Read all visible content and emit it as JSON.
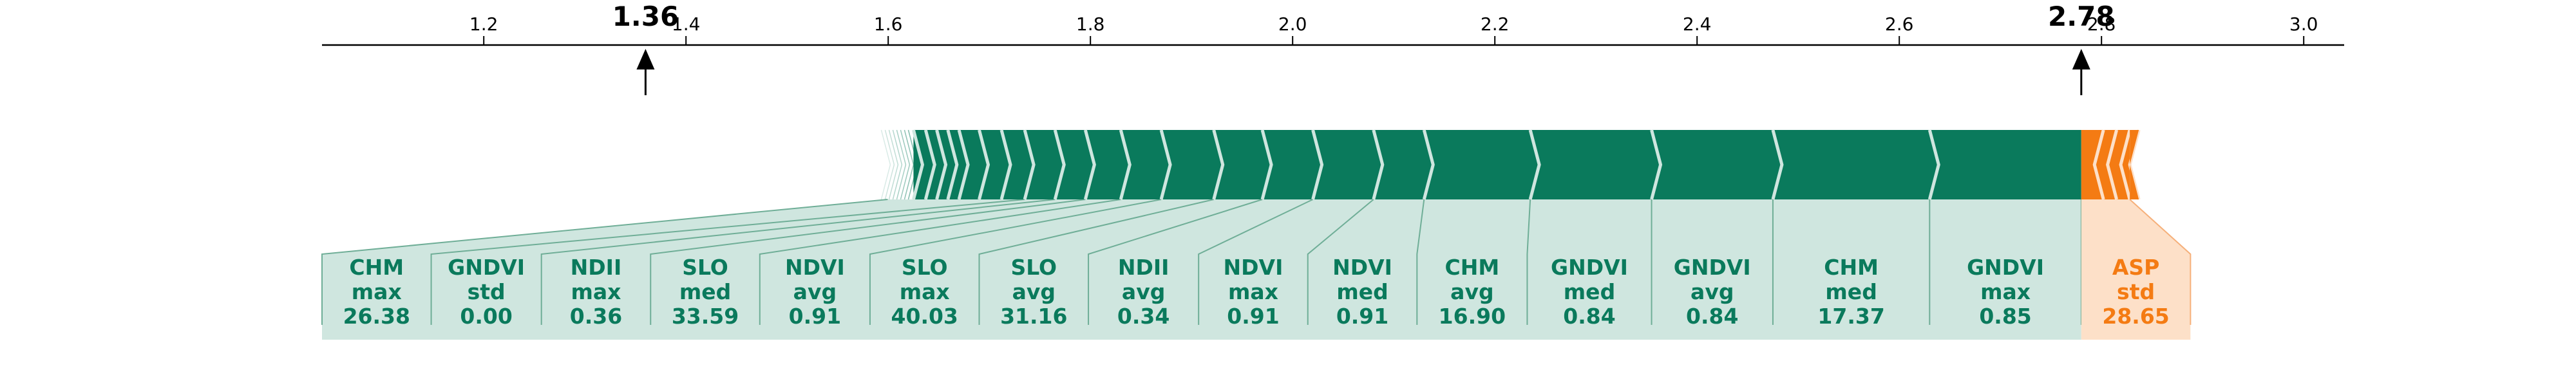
{
  "chart_data": {
    "type": "force",
    "axis": {
      "ticks": [
        1.2,
        1.4,
        1.6,
        1.8,
        2.0,
        2.2,
        2.4,
        2.6,
        2.8,
        3.0
      ],
      "tick_labels": [
        "1.2",
        "1.4",
        "1.6",
        "1.8",
        "2.0",
        "2.2",
        "2.4",
        "2.6",
        "2.8",
        "3.0"
      ],
      "xlim": [
        1.04,
        3.04
      ]
    },
    "markers": [
      {
        "label": "1.36",
        "value": 1.36
      },
      {
        "label": "2.78",
        "value": 2.78
      }
    ],
    "colors": {
      "positive": "#0a7a5c",
      "positive_light": "#cfe6df",
      "positive_text": "#0a7a5c",
      "negative": "#f47b13",
      "negative_light": "#fde0c8",
      "negative_text": "#f47b13"
    },
    "positive_segments": [
      1.625,
      1.637,
      1.648,
      1.659,
      1.67,
      1.69,
      1.712,
      1.735,
      1.765,
      1.795,
      1.83,
      1.87,
      1.922,
      1.97,
      2.02,
      2.08,
      2.13,
      2.235,
      2.355,
      2.475,
      2.63,
      2.78
    ],
    "negative_segments": [
      2.78,
      2.793,
      2.806,
      2.819,
      2.828
    ],
    "features": [
      {
        "name": "CHM",
        "stat": "max",
        "value": "26.38",
        "side": "positive"
      },
      {
        "name": "GNDVI",
        "stat": "std",
        "value": "0.00",
        "side": "positive"
      },
      {
        "name": "NDII",
        "stat": "max",
        "value": "0.36",
        "side": "positive"
      },
      {
        "name": "SLO",
        "stat": "med",
        "value": "33.59",
        "side": "positive"
      },
      {
        "name": "NDVI",
        "stat": "avg",
        "value": "0.91",
        "side": "positive"
      },
      {
        "name": "SLO",
        "stat": "max",
        "value": "40.03",
        "side": "positive"
      },
      {
        "name": "SLO",
        "stat": "avg",
        "value": "31.16",
        "side": "positive"
      },
      {
        "name": "NDII",
        "stat": "avg",
        "value": "0.34",
        "side": "positive"
      },
      {
        "name": "NDVI",
        "stat": "max",
        "value": "0.91",
        "side": "positive"
      },
      {
        "name": "NDVI",
        "stat": "med",
        "value": "0.91",
        "side": "positive"
      },
      {
        "name": "CHM",
        "stat": "avg",
        "value": "16.90",
        "side": "positive"
      },
      {
        "name": "GNDVI",
        "stat": "med",
        "value": "0.84",
        "side": "positive"
      },
      {
        "name": "GNDVI",
        "stat": "avg",
        "value": "0.84",
        "side": "positive"
      },
      {
        "name": "CHM",
        "stat": "med",
        "value": "17.37",
        "side": "positive"
      },
      {
        "name": "GNDVI",
        "stat": "max",
        "value": "0.85",
        "side": "positive"
      },
      {
        "name": "ASP",
        "stat": "std",
        "value": "28.65",
        "side": "negative"
      }
    ],
    "label_bounds": [
      1.04,
      1.148,
      1.257,
      1.365,
      1.473,
      1.582,
      1.69,
      1.798,
      1.907,
      2.015,
      2.123,
      2.232,
      2.355,
      2.475,
      2.63,
      2.78,
      2.888
    ],
    "title": "",
    "xlabel": "",
    "ylabel": ""
  }
}
